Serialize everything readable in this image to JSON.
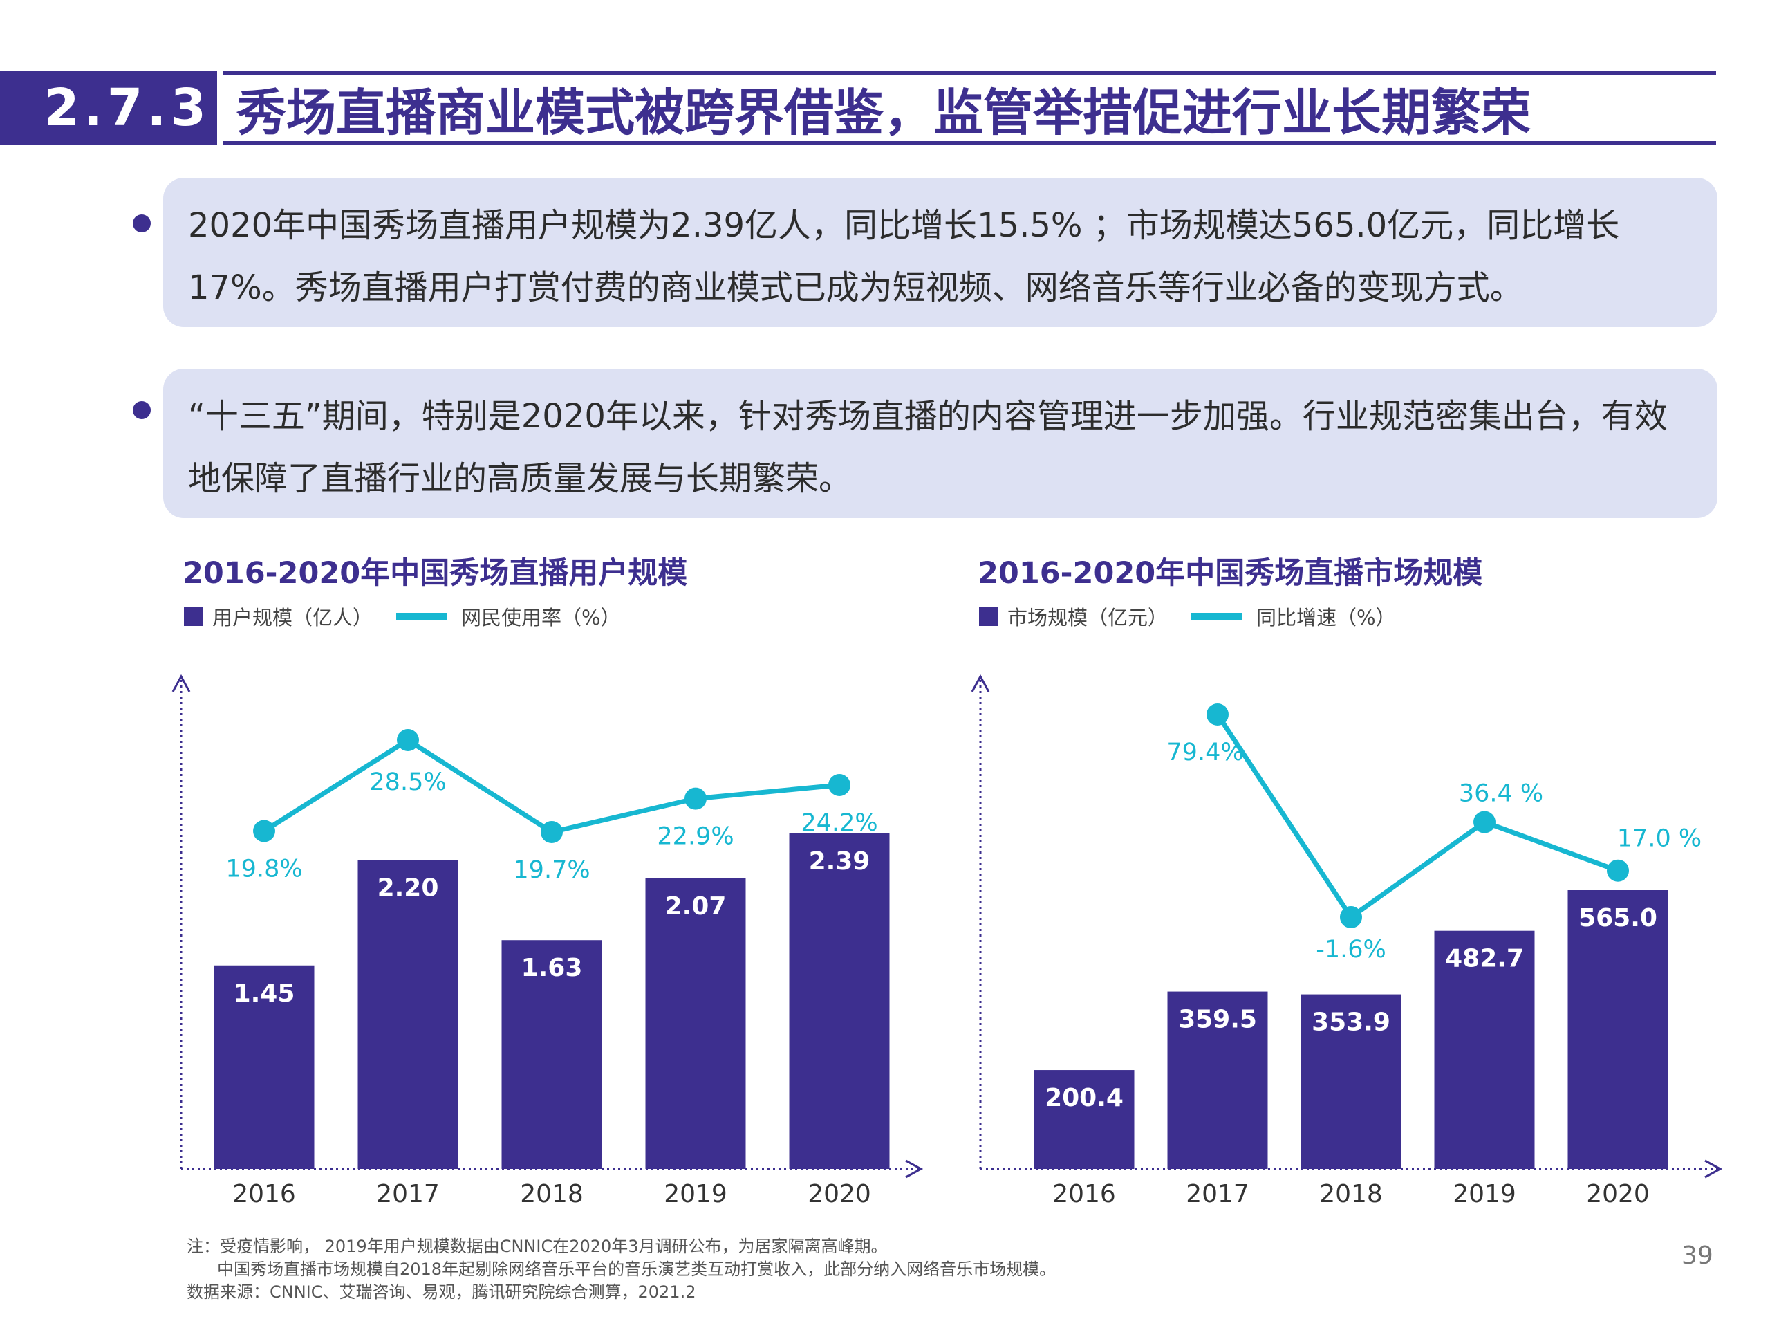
{
  "header": {
    "number": "2.7.3",
    "title": "秀场直播商业模式被跨界借鉴，监管举措促进行业长期繁荣"
  },
  "bullets": [
    "2020年中国秀场直播用户规模为2.39亿人，同比增长15.5% ；市场规模达565.0亿元，同比增长17%。秀场直播用户打赏付费的商业模式已成为短视频、网络音乐等行业必备的变现方式。",
    "“十三五”期间，特别是2020年以来，针对秀场直播的内容管理进一步加强。行业规范密集出台，有效地保障了直播行业的高质量发展与长期繁荣。"
  ],
  "colors": {
    "bar": "#3d2f8f",
    "line": "#17b7d1",
    "title": "#3d2f8f"
  },
  "chart_data": [
    {
      "type": "bar",
      "title": "2016-2020年中国秀场直播用户规模",
      "categories": [
        "2016",
        "2017",
        "2018",
        "2019",
        "2020"
      ],
      "series": [
        {
          "name": "用户规模（亿人）",
          "type": "bar",
          "values": [
            1.45,
            2.2,
            1.63,
            2.07,
            2.39
          ],
          "labels": [
            "1.45",
            "2.20",
            "1.63",
            "2.07",
            "2.39"
          ]
        },
        {
          "name": "网民使用率（%）",
          "type": "line",
          "values": [
            19.8,
            28.5,
            19.7,
            22.9,
            24.2
          ],
          "labels": [
            "19.8%",
            "28.5%",
            "19.7%",
            "22.9%",
            "24.2%"
          ]
        }
      ],
      "legend": "top-left",
      "grid": false
    },
    {
      "type": "bar",
      "title": "2016-2020年中国秀场直播市场规模",
      "categories": [
        "2016",
        "2017",
        "2018",
        "2019",
        "2020"
      ],
      "series": [
        {
          "name": "市场规模（亿元）",
          "type": "bar",
          "values": [
            200.4,
            359.5,
            353.9,
            482.7,
            565.0
          ],
          "labels": [
            "200.4",
            "359.5",
            "353.9",
            "482.7",
            "565.0"
          ]
        },
        {
          "name": "同比增速（%）",
          "type": "line",
          "values": [
            79.4,
            -1.6,
            36.4,
            17.0
          ],
          "x": [
            "2017",
            "2018",
            "2019",
            "2020"
          ],
          "labels": [
            "79.4%",
            "-1.6%",
            "36.4 %",
            "17.0 %"
          ]
        }
      ],
      "legend": "top-left",
      "grid": false
    }
  ],
  "notes": [
    "注：受疫情影响， 2019年用户规模数据由CNNIC在2020年3月调研公布，为居家隔离高峰期。",
    "中国秀场直播市场规模自2018年起剔除网络音乐平台的音乐演艺类互动打赏收入，此部分纳入网络音乐市场规模。",
    "数据来源：CNNIC、艾瑞咨询、易观，腾讯研究院综合测算，2021.2"
  ],
  "page_number": "39"
}
